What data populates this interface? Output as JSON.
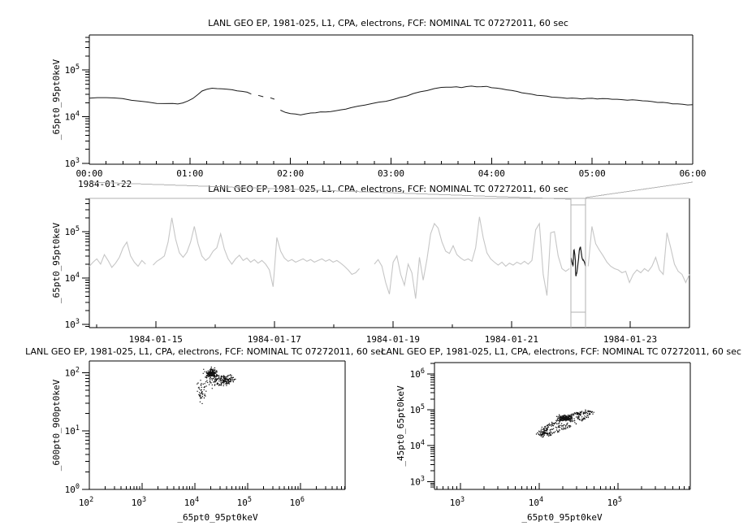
{
  "figure": {
    "bg": "#ffffff",
    "frame_color": "#000000",
    "series_black": "#1a1a1a",
    "series_gray": "#c6c6c6",
    "callout_gray": "#b2b2b2",
    "tick_label_color": "#000000"
  },
  "chart_data": [
    {
      "id": "top",
      "type": "line",
      "title": "LANL GEO EP, 1981-025, L1, CPA, electrons, FCF: NOMINAL TC 07272011, 60 sec",
      "ylabel": "_65pt0_95pt0keV",
      "date_label": "1984-01-22",
      "xlim": [
        0,
        6
      ],
      "x_ticks": [
        {
          "v": 0,
          "l": "00:00"
        },
        {
          "v": 1,
          "l": "01:00"
        },
        {
          "v": 2,
          "l": "02:00"
        },
        {
          "v": 3,
          "l": "03:00"
        },
        {
          "v": 4,
          "l": "04:00"
        },
        {
          "v": 5,
          "l": "05:00"
        },
        {
          "v": 6,
          "l": "06:00"
        }
      ],
      "x_minor_step": 0.1666667,
      "ylog_lim": [
        2.983,
        5.75
      ],
      "y_tick_exponents": [
        3,
        4,
        5
      ],
      "series_units": "counts x1000",
      "series": [
        [
          0,
          25
        ],
        [
          0.08,
          25.5
        ],
        [
          0.17,
          26
        ],
        [
          0.25,
          25.2
        ],
        [
          0.33,
          24
        ],
        [
          0.42,
          22.5
        ],
        [
          0.5,
          21.5
        ],
        [
          0.58,
          20.5
        ],
        [
          0.67,
          19.6
        ],
        [
          0.75,
          19.2
        ],
        [
          0.83,
          19
        ],
        [
          0.88,
          18.8
        ],
        [
          0.93,
          19.6
        ],
        [
          0.98,
          21.5
        ],
        [
          1.03,
          25
        ],
        [
          1.08,
          30
        ],
        [
          1.12,
          35
        ],
        [
          1.17,
          39
        ],
        [
          1.22,
          40.5
        ],
        [
          1.27,
          39.5
        ],
        [
          1.32,
          40.2
        ],
        [
          1.37,
          39
        ],
        [
          1.42,
          37.5
        ],
        [
          1.47,
          36
        ],
        [
          1.52,
          34.5
        ],
        [
          1.57,
          33
        ],
        [
          1.61,
          31
        ],
        null,
        [
          1.68,
          28.5
        ],
        [
          1.73,
          27
        ],
        null,
        [
          1.8,
          25
        ],
        [
          1.84,
          24
        ],
        null,
        [
          1.9,
          13.8
        ],
        [
          1.95,
          12.5
        ],
        [
          2,
          11.6
        ],
        [
          2.05,
          11.2
        ],
        [
          2.1,
          11
        ],
        [
          2.15,
          11.5
        ],
        [
          2.2,
          12
        ],
        [
          2.25,
          12.3
        ],
        [
          2.3,
          12.6
        ],
        [
          2.35,
          12.4
        ],
        [
          2.4,
          13
        ],
        [
          2.45,
          13.4
        ],
        [
          2.5,
          14
        ],
        [
          2.55,
          14.8
        ],
        [
          2.6,
          15.5
        ],
        [
          2.67,
          16.6
        ],
        [
          2.74,
          17.8
        ],
        [
          2.81,
          19
        ],
        [
          2.88,
          20.5
        ],
        [
          2.95,
          21.8
        ],
        [
          3.02,
          23.2
        ],
        [
          3.09,
          25.5
        ],
        [
          3.16,
          28
        ],
        [
          3.22,
          31
        ],
        [
          3.29,
          34
        ],
        [
          3.36,
          37
        ],
        [
          3.43,
          40
        ],
        [
          3.5,
          42
        ],
        [
          3.55,
          43
        ],
        [
          3.6,
          42.5
        ],
        [
          3.65,
          43.5
        ],
        [
          3.7,
          42.8
        ],
        [
          3.75,
          44.2
        ],
        [
          3.8,
          45
        ],
        [
          3.85,
          44
        ],
        [
          3.9,
          43.5
        ],
        [
          3.95,
          44.2
        ],
        [
          4,
          42.5
        ],
        [
          4.05,
          41
        ],
        [
          4.1,
          39.5
        ],
        [
          4.15,
          38
        ],
        [
          4.2,
          36
        ],
        [
          4.25,
          34.5
        ],
        [
          4.3,
          33
        ],
        [
          4.35,
          31.5
        ],
        [
          4.4,
          30.2
        ],
        [
          4.45,
          29
        ],
        [
          4.5,
          28
        ],
        [
          4.55,
          27.2
        ],
        [
          4.6,
          26.5
        ],
        [
          4.65,
          26
        ],
        [
          4.7,
          25.5
        ],
        [
          4.75,
          25
        ],
        [
          4.8,
          24.8
        ],
        [
          4.85,
          24.4
        ],
        [
          4.9,
          24.2
        ],
        [
          4.95,
          24.6
        ],
        [
          5,
          24.8
        ],
        [
          5.05,
          24.4
        ],
        [
          5.1,
          24.2
        ],
        [
          5.15,
          24
        ],
        [
          5.2,
          23.8
        ],
        [
          5.25,
          23.5
        ],
        [
          5.3,
          23.2
        ],
        [
          5.35,
          23
        ],
        [
          5.4,
          22.8
        ],
        [
          5.45,
          22.4
        ],
        [
          5.5,
          22
        ],
        [
          5.55,
          21.5
        ],
        [
          5.6,
          21
        ],
        [
          5.65,
          20.6
        ],
        [
          5.7,
          20.2
        ],
        [
          5.75,
          19.6
        ],
        [
          5.8,
          19
        ],
        [
          5.85,
          18.6
        ],
        [
          5.9,
          18.4
        ],
        [
          5.95,
          18.2
        ],
        [
          6,
          18
        ]
      ]
    },
    {
      "id": "middle",
      "type": "line",
      "title": "LANL GEO EP, 1981-025, L1, CPA, electrons, FCF: NOMINAL TC 07272011, 60 sec",
      "ylabel": "_65pt0_95pt0keV",
      "xlim": [
        13.88,
        24.0
      ],
      "x_ticks": [
        {
          "v": 15,
          "l": "1984-01-15"
        },
        {
          "v": 17,
          "l": "1984-01-17"
        },
        {
          "v": 19,
          "l": "1984-01-19"
        },
        {
          "v": 21,
          "l": "1984-01-21"
        },
        {
          "v": 23,
          "l": "1984-01-23"
        }
      ],
      "x_minor_ticks": [
        14,
        16,
        18,
        20,
        22,
        24
      ],
      "ylog_lim": [
        2.93,
        5.72
      ],
      "y_tick_exponents": [
        3,
        4,
        5
      ],
      "x_start": 13.88,
      "x_step": 0.06325,
      "series_units": "counts x1000",
      "values": [
        18,
        22,
        26,
        20,
        32,
        24,
        17,
        21,
        28,
        45,
        60,
        30,
        22,
        18,
        24,
        20,
        null,
        19,
        23,
        26,
        30,
        60,
        200,
        70,
        35,
        28,
        36,
        60,
        130,
        55,
        30,
        24,
        28,
        38,
        45,
        90,
        42,
        26,
        20,
        26,
        31,
        24,
        27,
        22,
        25,
        21,
        24,
        20,
        15,
        6.5,
        75,
        38,
        27,
        23,
        25,
        22,
        24,
        26,
        23,
        25,
        22,
        24,
        26,
        23,
        25,
        22,
        24,
        21,
        18,
        15,
        12,
        13,
        16,
        null,
        null,
        null,
        20,
        25,
        18,
        8,
        4.5,
        22,
        30,
        12,
        7,
        20,
        13,
        3.6,
        28,
        9,
        25,
        90,
        150,
        120,
        60,
        38,
        34,
        50,
        32,
        27,
        24,
        26,
        23,
        45,
        210,
        75,
        35,
        26,
        22,
        19,
        22,
        18,
        21,
        19,
        22,
        20,
        23,
        20,
        24,
        110,
        150,
        12,
        4.2,
        95,
        100,
        30,
        16,
        14,
        16,
        null,
        null,
        null,
        null,
        18,
        130,
        55,
        40,
        30,
        22,
        18,
        16,
        15,
        13,
        14,
        8,
        12,
        15,
        13,
        16,
        14,
        18,
        28,
        15,
        12,
        95,
        45,
        20,
        14,
        12,
        8,
        12
      ],
      "selection": {
        "x0": 22.0,
        "x1": 22.25,
        "overlay_series": "top",
        "note": "zoom region shown in top panel"
      }
    },
    {
      "id": "scatter_left",
      "type": "scatter",
      "title": "LANL GEO EP, 1981-025, L1, CPA, electrons, FCF: NOMINAL TC 07272011, 60 sec",
      "xlabel": "_65pt0_95pt0keV",
      "ylabel": "_600pt0_900pt0keV",
      "xlog_lim": [
        2.0,
        6.85
      ],
      "x_tick_exponents": [
        2,
        3,
        4,
        5,
        6
      ],
      "ylog_lim": [
        0,
        2.2
      ],
      "y_tick_exponents": [
        0,
        1,
        2
      ],
      "clusters": [
        {
          "kind": "blob",
          "cx": 4.31,
          "cy": 1.98,
          "sx": 0.055,
          "sy": 0.04,
          "n": 160,
          "seed": 11
        },
        {
          "kind": "blob",
          "cx": 4.5,
          "cy": 1.87,
          "sx": 0.09,
          "sy": 0.045,
          "n": 110,
          "seed": 22
        },
        {
          "kind": "blob",
          "cx": 4.65,
          "cy": 1.88,
          "sx": 0.06,
          "sy": 0.04,
          "n": 60,
          "seed": 33
        },
        {
          "kind": "trail",
          "x0": 4.1,
          "y0": 1.55,
          "x1": 4.28,
          "y1": 1.85,
          "n": 28,
          "jitter": 0.035,
          "seed": 44
        },
        {
          "kind": "blob",
          "cx": 4.12,
          "cy": 1.75,
          "sx": 0.04,
          "sy": 0.07,
          "n": 22,
          "seed": 55
        },
        {
          "kind": "points",
          "pts": [
            [
              4.1,
              1.5
            ],
            [
              4.14,
              1.47
            ],
            [
              4.2,
              1.6
            ],
            [
              4.05,
              1.68
            ],
            [
              4.33,
              1.73
            ],
            [
              4.6,
              1.78
            ]
          ]
        }
      ]
    },
    {
      "id": "scatter_right",
      "type": "scatter",
      "title": "LANL GEO EP, 1981-025, L1, CPA, electrons, FCF: NOMINAL TC 07272011, 60 sec",
      "xlabel": "_65pt0_95pt0keV",
      "ylabel": "_45pt0_65pt0keV",
      "xlog_lim": [
        2.67,
        5.92
      ],
      "x_tick_exponents": [
        3,
        4,
        5
      ],
      "ylog_lim": [
        2.78,
        6.32
      ],
      "y_tick_exponents": [
        3,
        4,
        5,
        6
      ],
      "clusters": [
        {
          "kind": "loop",
          "cx": 4.33,
          "cy": 4.63,
          "rx": 0.46,
          "ry": 0.105,
          "tilt": 45,
          "n": 170,
          "jitter": 0.018,
          "rvar": [
            1,
            0.88
          ],
          "seed": 7
        },
        {
          "kind": "loop",
          "cx": 4.3,
          "cy": 4.66,
          "rx": 0.3,
          "ry": 0.075,
          "tilt": 45,
          "n": 90,
          "jitter": 0.02,
          "rvar": [
            1
          ],
          "seed": 17
        },
        {
          "kind": "blob",
          "cx": 4.33,
          "cy": 4.77,
          "sx": 0.045,
          "sy": 0.035,
          "n": 160,
          "seed": 27
        },
        {
          "kind": "blob",
          "cx": 4.08,
          "cy": 4.33,
          "sx": 0.04,
          "sy": 0.04,
          "n": 30,
          "seed": 37
        },
        {
          "kind": "trail",
          "x0": 4.42,
          "y0": 4.88,
          "x1": 4.62,
          "y1": 4.93,
          "n": 25,
          "jitter": 0.02,
          "seed": 47
        }
      ]
    }
  ]
}
